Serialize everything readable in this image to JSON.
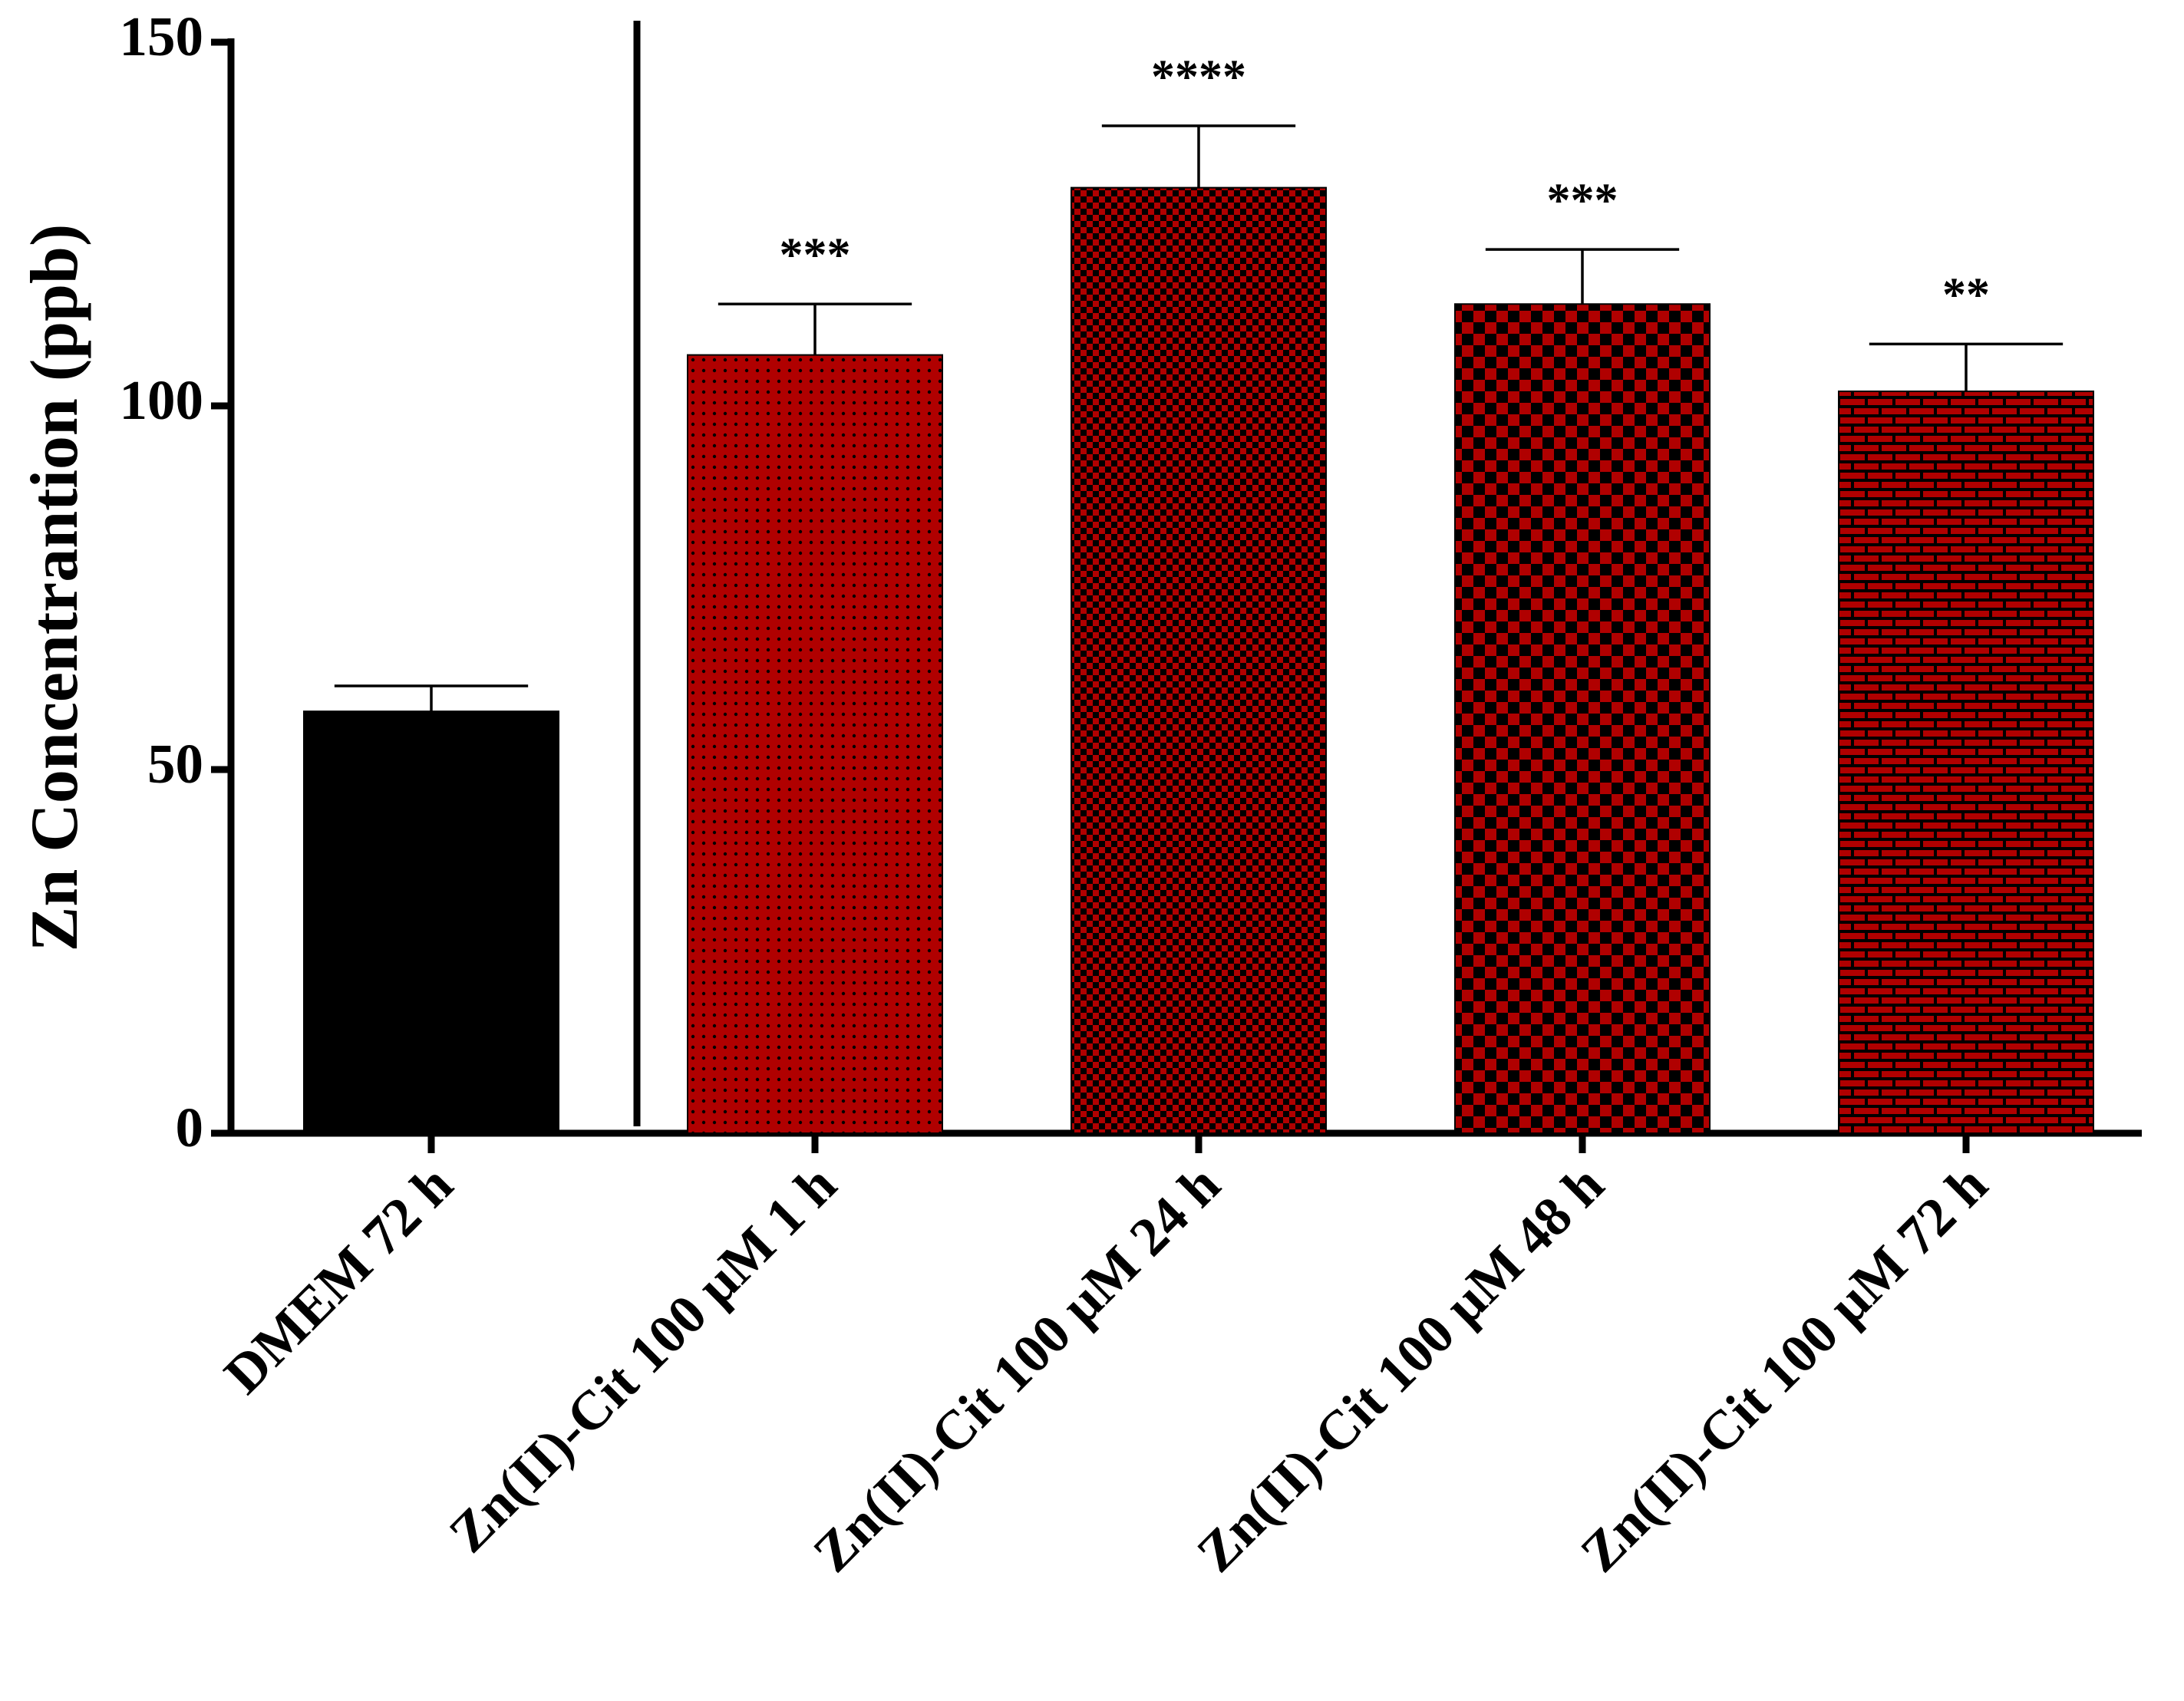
{
  "chart_data": {
    "type": "bar",
    "y_label": "Zn Concentrantion (ppb)",
    "categories": [
      "DMEM 72 h",
      "Zn(II)-Cit 100 μM 1 h",
      "Zn(II)-Cit 100 μM 24 h",
      "Zn(II)-Cit 100 μM 48 h",
      "Zn(II)-Cit 100 μM 72 h"
    ],
    "values": [
      58,
      107,
      130,
      114,
      102
    ],
    "errors": [
      3.5,
      7,
      8.5,
      7.5,
      6.5
    ],
    "significance": [
      null,
      "***",
      "****",
      "***",
      "**"
    ],
    "colors": [
      "#000000",
      "#b00000",
      "#b00000",
      "#b00000",
      "#b00000"
    ],
    "ylim": [
      0,
      150
    ],
    "yticks": [
      0,
      50,
      100,
      150
    ],
    "grid": false
  }
}
